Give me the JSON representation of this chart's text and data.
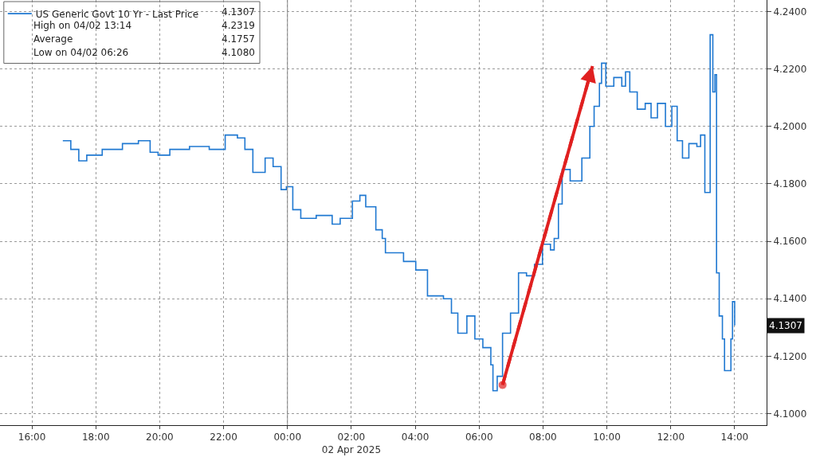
{
  "chart_data": {
    "type": "step",
    "series": [
      {
        "name": "US Generic Govt 10 Yr - Last Price",
        "color": "#1f78d1",
        "x": [
          "2025-04-01T16:58",
          "2025-04-01T17:13",
          "2025-04-01T17:28",
          "2025-04-01T17:43",
          "2025-04-01T18:12",
          "2025-04-01T18:50",
          "2025-04-01T19:20",
          "2025-04-01T19:42",
          "2025-04-01T19:57",
          "2025-04-01T20:19",
          "2025-04-01T20:56",
          "2025-04-01T21:33",
          "2025-04-01T22:03",
          "2025-04-01T22:26",
          "2025-04-01T22:40",
          "2025-04-01T22:55",
          "2025-04-01T23:18",
          "2025-04-01T23:33",
          "2025-04-01T23:48",
          "2025-04-01T23:58",
          "2025-04-02T00:10",
          "2025-04-02T00:25",
          "2025-04-02T00:54",
          "2025-04-02T01:24",
          "2025-04-02T01:39",
          "2025-04-02T02:02",
          "2025-04-02T02:16",
          "2025-04-02T02:27",
          "2025-04-02T02:46",
          "2025-04-02T02:58",
          "2025-04-02T03:04",
          "2025-04-02T03:16",
          "2025-04-02T03:38",
          "2025-04-02T04:01",
          "2025-04-02T04:23",
          "2025-04-02T04:53",
          "2025-04-02T05:08",
          "2025-04-02T05:20",
          "2025-04-02T05:37",
          "2025-04-02T05:52",
          "2025-04-02T06:07",
          "2025-04-02T06:22",
          "2025-04-02T06:26",
          "2025-04-02T06:34",
          "2025-04-02T06:44",
          "2025-04-02T06:59",
          "2025-04-02T07:14",
          "2025-04-02T07:29",
          "2025-04-02T07:44",
          "2025-04-02T07:59",
          "2025-04-02T08:14",
          "2025-04-02T08:21",
          "2025-04-02T08:29",
          "2025-04-02T08:36",
          "2025-04-02T08:51",
          "2025-04-02T09:13",
          "2025-04-02T09:28",
          "2025-04-02T09:36",
          "2025-04-02T09:46",
          "2025-04-02T09:50",
          "2025-04-02T09:58",
          "2025-04-02T10:13",
          "2025-04-02T10:28",
          "2025-04-02T10:35",
          "2025-04-02T10:43",
          "2025-04-02T10:57",
          "2025-04-02T11:12",
          "2025-04-02T11:23",
          "2025-04-02T11:35",
          "2025-04-02T11:50",
          "2025-04-02T12:02",
          "2025-04-02T12:12",
          "2025-04-02T12:22",
          "2025-04-02T12:34",
          "2025-04-02T12:49",
          "2025-04-02T12:56",
          "2025-04-02T13:04",
          "2025-04-02T13:14",
          "2025-04-02T13:19",
          "2025-04-02T13:23",
          "2025-04-02T13:26",
          "2025-04-02T13:31",
          "2025-04-02T13:37",
          "2025-04-02T13:41",
          "2025-04-02T13:49",
          "2025-04-02T13:53",
          "2025-04-02T13:56",
          "2025-04-02T14:00"
        ],
        "values": [
          4.195,
          4.192,
          4.188,
          4.19,
          4.192,
          4.194,
          4.195,
          4.191,
          4.19,
          4.192,
          4.193,
          4.192,
          4.197,
          4.196,
          4.192,
          4.184,
          4.189,
          4.186,
          4.178,
          4.179,
          4.171,
          4.168,
          4.169,
          4.166,
          4.168,
          4.174,
          4.176,
          4.172,
          4.164,
          4.161,
          4.156,
          4.156,
          4.153,
          4.15,
          4.141,
          4.14,
          4.135,
          4.128,
          4.134,
          4.126,
          4.123,
          4.117,
          4.108,
          4.113,
          4.128,
          4.135,
          4.149,
          4.148,
          4.152,
          4.159,
          4.157,
          4.161,
          4.173,
          4.185,
          4.181,
          4.189,
          4.2,
          4.207,
          4.215,
          4.222,
          4.214,
          4.217,
          4.214,
          4.219,
          4.212,
          4.206,
          4.208,
          4.203,
          4.208,
          4.2,
          4.207,
          4.195,
          4.189,
          4.194,
          4.193,
          4.197,
          4.177,
          4.2319,
          4.212,
          4.218,
          4.149,
          4.134,
          4.126,
          4.115,
          4.115,
          4.126,
          4.139,
          4.1307
        ]
      },
      {
        "type": "line",
        "color": "#e02020",
        "line_style": "dashed",
        "marker": "circle",
        "x": [
          "2025-04-02T06:44",
          "2025-04-02T09:33"
        ],
        "values": [
          4.11,
          4.221
        ]
      }
    ],
    "xlim": [
      "2025-04-01T15:00",
      "2025-04-02T15:00"
    ],
    "xticks": [
      {
        "value": "2025-04-01T16:00",
        "label": "16:00"
      },
      {
        "value": "2025-04-01T18:00",
        "label": "18:00"
      },
      {
        "value": "2025-04-01T20:00",
        "label": "20:00"
      },
      {
        "value": "2025-04-01T22:00",
        "label": "22:00"
      },
      {
        "value": "2025-04-02T00:00",
        "label": "00:00"
      },
      {
        "value": "2025-04-02T02:00",
        "label": "02:00\n02 Apr 2025"
      },
      {
        "value": "2025-04-02T04:00",
        "label": "04:00"
      },
      {
        "value": "2025-04-02T06:00",
        "label": "06:00"
      },
      {
        "value": "2025-04-02T08:00",
        "label": "08:00"
      },
      {
        "value": "2025-04-02T10:00",
        "label": "10:00"
      },
      {
        "value": "2025-04-02T12:00",
        "label": "12:00"
      },
      {
        "value": "2025-04-02T14:00",
        "label": "14:00"
      }
    ],
    "ylim": [
      4.096,
      4.244
    ],
    "yticks": [
      {
        "value": 4.1,
        "label": "4.1000"
      },
      {
        "value": 4.12,
        "label": "4.1200"
      },
      {
        "value": 4.14,
        "label": "4.1400"
      },
      {
        "value": 4.16,
        "label": "4.1600"
      },
      {
        "value": 4.18,
        "label": "4.1800"
      },
      {
        "value": 4.2,
        "label": "4.2000"
      },
      {
        "value": 4.22,
        "label": "4.2200"
      },
      {
        "value": 4.24,
        "label": "4.2400"
      }
    ],
    "ref_lines": [
      {
        "axis": "x",
        "value": "2025-04-02T00:00",
        "color": "#888888",
        "line_style": "solid"
      }
    ],
    "annotations": [
      "4.1307",
      "High on 04/02 13:14",
      "4.2319",
      "Average",
      "4.1757",
      "Low on 04/02 06:26",
      "4.1080",
      "4.1307"
    ],
    "grid": true,
    "legend": "top left"
  }
}
